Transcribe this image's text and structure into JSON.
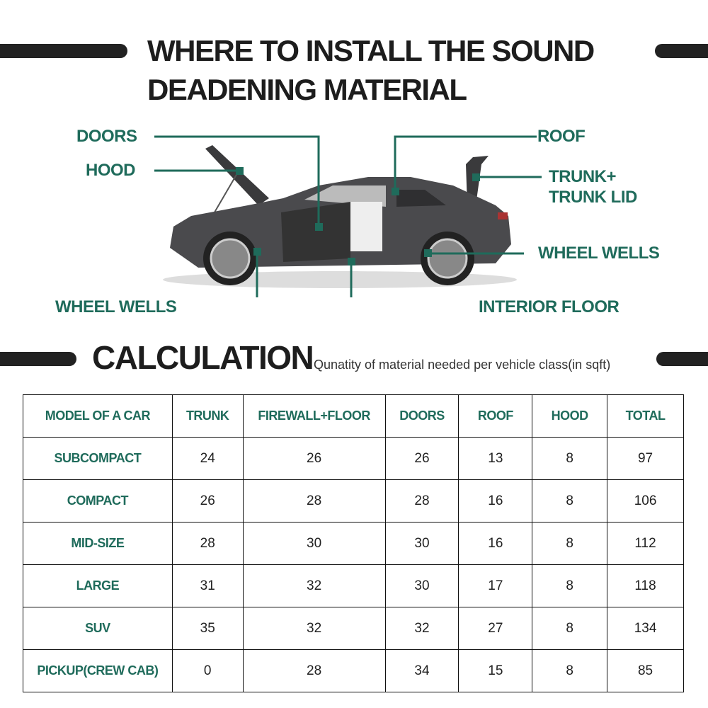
{
  "header": {
    "title_line1": "WHERE TO INSTALL THE SOUND",
    "title_line2": "DEADENING MATERIAL"
  },
  "diagram": {
    "labels": {
      "doors": "DOORS",
      "hood": "HOOD",
      "roof": "ROOF",
      "trunk_line1": "TRUNK+",
      "trunk_line2": "TRUNK LID",
      "wheel_wells_right": "WHEEL WELLS",
      "wheel_wells_left": "WHEEL WELLS",
      "interior_floor": "INTERIOR FLOOR"
    },
    "accent_color": "#1f6b5b"
  },
  "calculation": {
    "title": "CALCULATION",
    "subtitle": "Qunatity of material needed per vehicle class(in sqft)",
    "columns": [
      "MODEL OF A CAR",
      "TRUNK",
      "FIREWALL+FLOOR",
      "DOORS",
      "ROOF",
      "HOOD",
      "TOTAL"
    ],
    "rows": [
      [
        "SUBCOMPACT",
        "24",
        "26",
        "26",
        "13",
        "8",
        "97"
      ],
      [
        "COMPACT",
        "26",
        "28",
        "28",
        "16",
        "8",
        "106"
      ],
      [
        "MID-SIZE",
        "28",
        "30",
        "30",
        "16",
        "8",
        "112"
      ],
      [
        "LARGE",
        "31",
        "32",
        "30",
        "17",
        "8",
        "118"
      ],
      [
        "SUV",
        "35",
        "32",
        "32",
        "27",
        "8",
        "134"
      ],
      [
        "PICKUP(CREW CAB)",
        "0",
        "28",
        "34",
        "15",
        "8",
        "85"
      ]
    ]
  }
}
